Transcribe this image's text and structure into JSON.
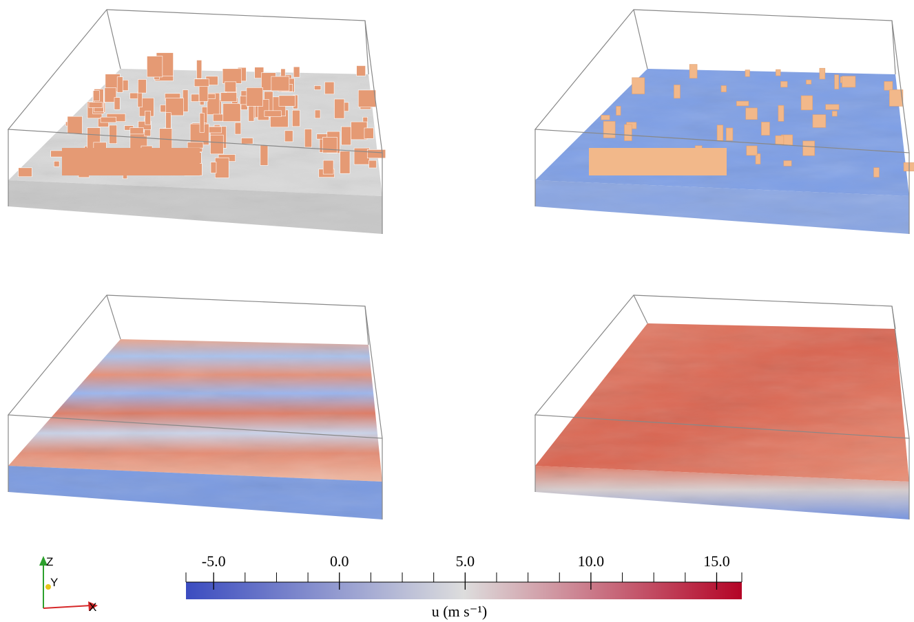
{
  "colorbar": {
    "label": "u (m s⁻¹)",
    "lim": [
      -6.1,
      16
    ],
    "colors": [
      "#3b4cc0",
      "#dddddd",
      "#b40426"
    ],
    "ticks": [
      {
        "value": -5,
        "label": "-5.0"
      },
      {
        "value": 0,
        "label": "0.0"
      },
      {
        "value": 5,
        "label": "5.0"
      },
      {
        "value": 10,
        "label": "10.0"
      },
      {
        "value": 15,
        "label": "15.0"
      }
    ],
    "minor_ticks": [
      -3.75,
      -2.5,
      -1.25,
      1.25,
      2.5,
      3.75,
      6.25,
      7.5,
      8.75,
      11.25,
      12.5,
      13.75
    ]
  },
  "axes_triad": {
    "z": "Z",
    "y": "Y",
    "x": "X"
  }
}
